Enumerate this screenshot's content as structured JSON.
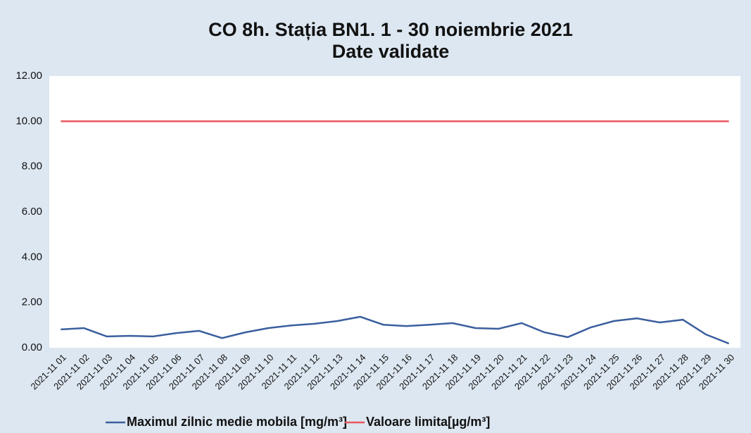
{
  "chart_data": {
    "type": "line",
    "title": "CO 8h. Stația BN1. 1 - 30 noiembrie 2021",
    "subtitle": "Date validate",
    "categories": [
      "2021-11 01",
      "2021-11 02",
      "2021-11 03",
      "2021-11 04",
      "2021-11 05",
      "2021-11 06",
      "2021-11 07",
      "2021-11 08",
      "2021-11 09",
      "2021-11 10",
      "2021-11 11",
      "2021-11 12",
      "2021-11 13",
      "2021-11 14",
      "2021-11 15",
      "2021-11 16",
      "2021-11 17",
      "2021-11 18",
      "2021-11 19",
      "2021-11 20",
      "2021-11 21",
      "2021-11 22",
      "2021-11 23",
      "2021-11 24",
      "2021-11 25",
      "2021-11 26",
      "2021-11 27",
      "2021-11 28",
      "2021-11 29",
      "2021-11 30"
    ],
    "series": [
      {
        "name": "Maximul zilnic medie mobila [mg/m³]",
        "color": "#3b5f9e",
        "values": [
          0.81,
          0.87,
          0.5,
          0.53,
          0.5,
          0.65,
          0.75,
          0.43,
          0.68,
          0.87,
          0.99,
          1.06,
          1.18,
          1.37,
          1.02,
          0.96,
          1.02,
          1.09,
          0.87,
          0.84,
          1.09,
          0.68,
          0.47,
          0.9,
          1.18,
          1.3,
          1.12,
          1.24,
          0.59,
          0.19
        ]
      },
      {
        "name": "Valoare limita[µg/m³]",
        "color": "#e8585f",
        "values": [
          10,
          10,
          10,
          10,
          10,
          10,
          10,
          10,
          10,
          10,
          10,
          10,
          10,
          10,
          10,
          10,
          10,
          10,
          10,
          10,
          10,
          10,
          10,
          10,
          10,
          10,
          10,
          10,
          10,
          10
        ]
      }
    ],
    "ylim": [
      0,
      12
    ],
    "yticks": [
      {
        "value": 0,
        "label": "0.00"
      },
      {
        "value": 2,
        "label": "2.00"
      },
      {
        "value": 4,
        "label": "4.00"
      },
      {
        "value": 6,
        "label": "6.00"
      },
      {
        "value": 8,
        "label": "8.00"
      },
      {
        "value": 10,
        "label": "10.00"
      },
      {
        "value": 12,
        "label": "12.00"
      }
    ],
    "grid": false
  }
}
